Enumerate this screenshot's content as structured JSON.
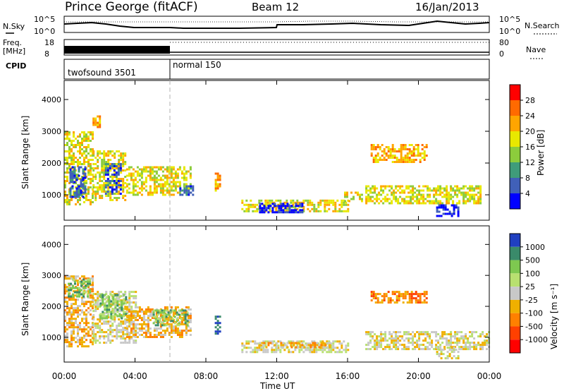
{
  "header": {
    "station": "Prince George (fitACF)",
    "beam": "Beam 12",
    "date": "16/Jan/2013"
  },
  "top_panels": {
    "nsky_label": "N.Sky",
    "nsky_ticks": [
      "10^5",
      "10^0"
    ],
    "nsearch_label": "N.Search",
    "nsearch_ticks": [
      "10^5",
      "10^0"
    ],
    "freq_label": "Freq.",
    "freq_unit": "[MHz]",
    "freq_ticks": [
      "18",
      "8"
    ],
    "nave_label": "Nave",
    "nave_ticks": [
      "80",
      "0"
    ],
    "cpid_label": "CPID",
    "cpid_segments": [
      {
        "label": "twofsound 3501",
        "start_hour": 0
      },
      {
        "label": "normal 150",
        "start_hour": 6
      }
    ]
  },
  "chart_data": [
    {
      "type": "heatmap",
      "name": "power",
      "ylabel": "Slant Range [km]",
      "yticks": [
        1000,
        2000,
        3000,
        4000
      ],
      "ylim": [
        200,
        4600
      ],
      "xlim": [
        0,
        24
      ],
      "colorbar_label": "Power [dB]",
      "colorbar_ticks": [
        "28",
        "24",
        "20",
        "16",
        "12",
        "8",
        "4"
      ],
      "colorbar_colors": [
        "#ff0000",
        "#ff6a00",
        "#ffa500",
        "#e8e800",
        "#8ccc3c",
        "#3f9c7a",
        "#4060b8",
        "#0000ff"
      ],
      "echo_regions": [
        {
          "t0": 0.0,
          "t1": 1.6,
          "r0": 700,
          "r1": 3000,
          "level": 3
        },
        {
          "t0": 0.3,
          "t1": 1.2,
          "r0": 900,
          "r1": 1900,
          "level": 6
        },
        {
          "t0": 1.6,
          "t1": 3.5,
          "r0": 800,
          "r1": 2400,
          "level": 3
        },
        {
          "t0": 2.3,
          "t1": 3.2,
          "r0": 1000,
          "r1": 2000,
          "level": 6
        },
        {
          "t0": 3.5,
          "t1": 7.2,
          "r0": 1000,
          "r1": 1900,
          "level": 3
        },
        {
          "t0": 6.5,
          "t1": 7.3,
          "r0": 1000,
          "r1": 1300,
          "level": 6
        },
        {
          "t0": 1.6,
          "t1": 2.0,
          "r0": 3100,
          "r1": 3500,
          "level": 2
        },
        {
          "t0": 8.5,
          "t1": 8.8,
          "r0": 1100,
          "r1": 1700,
          "level": 2
        },
        {
          "t0": 10.0,
          "t1": 16.0,
          "r0": 450,
          "r1": 850,
          "level": 3
        },
        {
          "t0": 11.0,
          "t1": 13.5,
          "r0": 450,
          "r1": 750,
          "level": 7
        },
        {
          "t0": 15.8,
          "t1": 16.8,
          "r0": 800,
          "r1": 1100,
          "level": 3
        },
        {
          "t0": 17.0,
          "t1": 23.5,
          "r0": 750,
          "r1": 1300,
          "level": 3
        },
        {
          "t0": 17.3,
          "t1": 20.5,
          "r0": 2000,
          "r1": 2600,
          "level": 2
        },
        {
          "t0": 21.0,
          "t1": 22.3,
          "r0": 350,
          "r1": 700,
          "level": 7
        }
      ]
    },
    {
      "type": "heatmap",
      "name": "velocity",
      "ylabel": "Slant Range [km]",
      "yticks": [
        1000,
        2000,
        3000,
        4000
      ],
      "ylim": [
        200,
        4600
      ],
      "xlim": [
        0,
        24
      ],
      "xticks": [
        "00:00",
        "04:00",
        "08:00",
        "12:00",
        "16:00",
        "20:00",
        "00:00"
      ],
      "xlabel": "Time UT",
      "colorbar_label": "Velocity [m s⁻¹]",
      "colorbar_ticks": [
        "1000",
        "500",
        "100",
        "25",
        "-25",
        "-100",
        "-500",
        "-1000"
      ],
      "colorbar_colors": [
        "#2040c0",
        "#3a8a6a",
        "#7ec850",
        "#b8e070",
        "#c8c8c8",
        "#f0b000",
        "#ff8000",
        "#ff4000",
        "#ff0000"
      ],
      "echo_regions": [
        {
          "t0": 0.0,
          "t1": 1.6,
          "r0": 700,
          "r1": 3000,
          "level": 5
        },
        {
          "t0": 0.2,
          "t1": 1.5,
          "r0": 2300,
          "r1": 2900,
          "level": 2
        },
        {
          "t0": 1.6,
          "t1": 4.0,
          "r0": 800,
          "r1": 2500,
          "level": 4
        },
        {
          "t0": 2.0,
          "t1": 3.5,
          "r0": 1600,
          "r1": 2400,
          "level": 2
        },
        {
          "t0": 3.5,
          "t1": 7.2,
          "r0": 1000,
          "r1": 2000,
          "level": 5
        },
        {
          "t0": 5.0,
          "t1": 7.0,
          "r0": 1400,
          "r1": 1900,
          "level": 2
        },
        {
          "t0": 8.5,
          "t1": 8.8,
          "r0": 1100,
          "r1": 1700,
          "level": 0
        },
        {
          "t0": 10.0,
          "t1": 16.0,
          "r0": 500,
          "r1": 900,
          "level": 4
        },
        {
          "t0": 11.0,
          "t1": 15.0,
          "r0": 650,
          "r1": 850,
          "level": 5
        },
        {
          "t0": 17.0,
          "t1": 24.0,
          "r0": 650,
          "r1": 1200,
          "level": 4
        },
        {
          "t0": 17.3,
          "t1": 20.5,
          "r0": 2100,
          "r1": 2500,
          "level": 6
        },
        {
          "t0": 21.0,
          "t1": 22.3,
          "r0": 300,
          "r1": 700,
          "level": 4
        }
      ]
    }
  ]
}
